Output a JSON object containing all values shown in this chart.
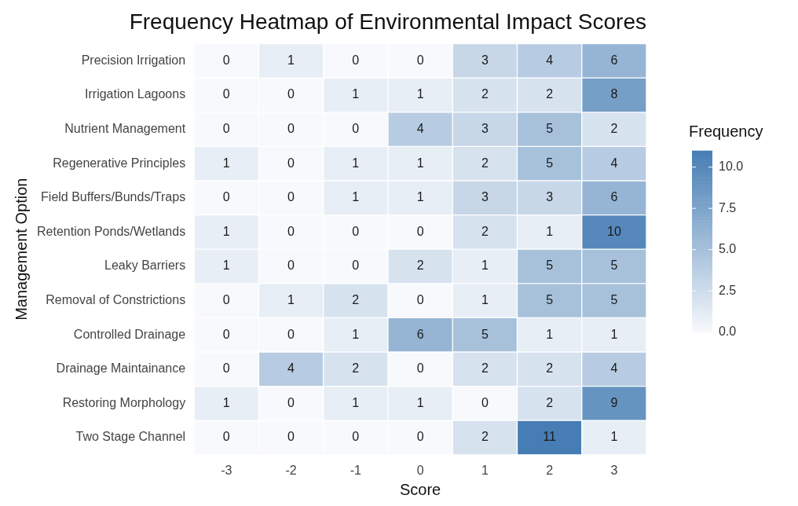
{
  "chart_data": {
    "type": "heatmap",
    "title": "Frequency Heatmap of Environmental Impact Scores",
    "xlabel": "Score",
    "ylabel": "Management Option",
    "clabel": "Frequency",
    "categories": [
      "-3",
      "-2",
      "-1",
      "0",
      "1",
      "2",
      "3"
    ],
    "y_categories": [
      "Precision Irrigation",
      "Irrigation Lagoons",
      "Nutrient Management",
      "Regenerative Principles",
      "Field Buffers/Bunds/Traps",
      "Retention Ponds/Wetlands",
      "Leaky Barriers",
      "Removal of Constrictions",
      "Controlled Drainage",
      "Drainage Maintainance",
      "Restoring Morphology",
      "Two Stage Channel"
    ],
    "cells": [
      [
        0,
        1,
        0,
        0,
        3,
        4,
        6
      ],
      [
        0,
        0,
        1,
        1,
        2,
        2,
        8
      ],
      [
        0,
        0,
        0,
        4,
        3,
        5,
        2
      ],
      [
        1,
        0,
        1,
        1,
        2,
        5,
        4
      ],
      [
        0,
        0,
        1,
        1,
        3,
        3,
        6
      ],
      [
        1,
        0,
        0,
        0,
        2,
        1,
        10
      ],
      [
        1,
        0,
        0,
        2,
        1,
        5,
        5
      ],
      [
        0,
        1,
        2,
        0,
        1,
        5,
        5
      ],
      [
        0,
        0,
        1,
        6,
        5,
        1,
        1
      ],
      [
        0,
        4,
        2,
        0,
        2,
        2,
        4
      ],
      [
        1,
        0,
        1,
        1,
        0,
        2,
        9
      ],
      [
        0,
        0,
        0,
        0,
        2,
        11,
        1
      ]
    ],
    "clim": [
      0,
      11
    ],
    "cticks": [
      {
        "value": 0,
        "label": "0.0"
      },
      {
        "value": 2.5,
        "label": "2.5"
      },
      {
        "value": 5,
        "label": "5.0"
      },
      {
        "value": 7.5,
        "label": "7.5"
      },
      {
        "value": 10,
        "label": "10.0"
      }
    ],
    "data_labels": true
  }
}
